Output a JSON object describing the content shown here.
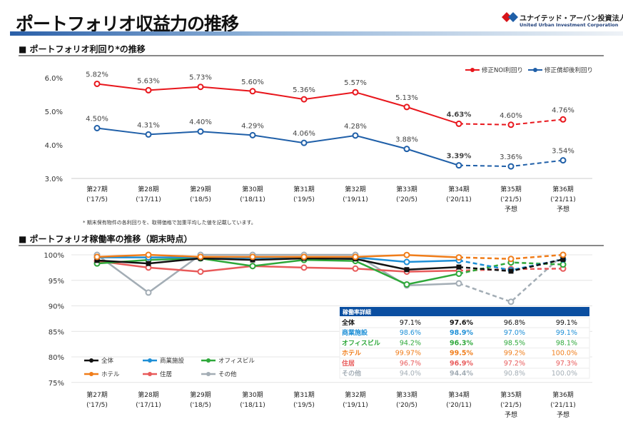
{
  "header": {
    "title": "ポートフォリオ収益力の推移",
    "logo_jp": "ユナイテッド・アーバン投資法人",
    "logo_en": "United Urban Investment Corporation"
  },
  "section1": {
    "title": "■ ポートフォリオ利回り*の推移",
    "note": "* 期末保有物件の各利回りを、取得価格で加重平均した値を記載しています。"
  },
  "section2": {
    "title": "■ ポートフォリオ稼働率の推移（期末時点）"
  },
  "colors": {
    "noi": "#e8161c",
    "after_dep": "#1f5fa8",
    "all": "#111111",
    "commercial": "#1e8fd6",
    "office": "#2ea83a",
    "hotel": "#f07d1a",
    "residential": "#e85a5a",
    "other": "#a3adb5",
    "table_header": "#0a4ea0"
  },
  "chart_data": [
    {
      "type": "line",
      "title": "",
      "categories": [
        [
          "第27期",
          "('17/5)",
          ""
        ],
        [
          "第28期",
          "('17/11)",
          ""
        ],
        [
          "第29期",
          "('18/5)",
          ""
        ],
        [
          "第30期",
          "('18/11)",
          ""
        ],
        [
          "第31期",
          "('19/5)",
          ""
        ],
        [
          "第32期",
          "('19/11)",
          ""
        ],
        [
          "第33期",
          "('20/5)",
          ""
        ],
        [
          "第34期",
          "('20/11)",
          ""
        ],
        [
          "第35期",
          "('21/5)",
          "予想"
        ],
        [
          "第36期",
          "('21/11)",
          "予想"
        ]
      ],
      "ylim": [
        3.0,
        6.0
      ],
      "yticks": [
        "3.0%",
        "4.0%",
        "5.0%",
        "6.0%"
      ],
      "grid": false,
      "legend": "top-right",
      "forecast_from_index": 7,
      "series": [
        {
          "name": "修正NOI利回り",
          "values": [
            5.82,
            5.63,
            5.73,
            5.6,
            5.36,
            5.57,
            5.13,
            4.63,
            4.6,
            4.76
          ],
          "labels": [
            "5.82%",
            "5.63%",
            "5.73%",
            "5.60%",
            "5.36%",
            "5.57%",
            "5.13%",
            "4.63%",
            "4.60%",
            "4.76%"
          ]
        },
        {
          "name": "修正償却後利回り",
          "values": [
            4.5,
            4.31,
            4.4,
            4.29,
            4.06,
            4.28,
            3.88,
            3.39,
            3.36,
            3.54
          ],
          "labels": [
            "4.50%",
            "4.31%",
            "4.40%",
            "4.29%",
            "4.06%",
            "4.28%",
            "3.88%",
            "3.39%",
            "3.36%",
            "3.54%"
          ]
        }
      ]
    },
    {
      "type": "line",
      "title": "",
      "categories": [
        [
          "第27期",
          "('17/5)",
          ""
        ],
        [
          "第28期",
          "('17/11)",
          ""
        ],
        [
          "第29期",
          "('18/5)",
          ""
        ],
        [
          "第30期",
          "('18/11)",
          ""
        ],
        [
          "第31期",
          "('19/5)",
          ""
        ],
        [
          "第32期",
          "('19/11)",
          ""
        ],
        [
          "第33期",
          "('20/5)",
          ""
        ],
        [
          "第34期",
          "('20/11)",
          ""
        ],
        [
          "第35期",
          "('21/5)",
          "予想"
        ],
        [
          "第36期",
          "('21/11)",
          "予想"
        ]
      ],
      "ylim": [
        75,
        100
      ],
      "yticks": [
        "75%",
        "80%",
        "85%",
        "90%",
        "95%",
        "100%"
      ],
      "grid": true,
      "legend": "bottom-left",
      "forecast_from_index": 7,
      "series": [
        {
          "name": "全体",
          "values": [
            98.9,
            98.3,
            99.3,
            99.0,
            99.3,
            99.2,
            97.1,
            97.6,
            96.8,
            99.1
          ]
        },
        {
          "name": "商業施設",
          "values": [
            99.5,
            99.5,
            99.5,
            99.4,
            99.5,
            99.5,
            98.6,
            98.9,
            97.0,
            99.1
          ]
        },
        {
          "name": "オフィスビル",
          "values": [
            98.3,
            99.0,
            99.3,
            97.8,
            99.0,
            98.8,
            94.2,
            96.3,
            98.5,
            98.1
          ]
        },
        {
          "name": "ホテル",
          "values": [
            99.6,
            100,
            99.6,
            99.6,
            99.6,
            99.6,
            99.97,
            99.5,
            99.2,
            100.0
          ]
        },
        {
          "name": "住居",
          "values": [
            98.8,
            97.5,
            96.7,
            97.8,
            97.5,
            97.3,
            96.7,
            96.9,
            97.2,
            97.3
          ]
        },
        {
          "name": "その他",
          "values": [
            100,
            92.6,
            100,
            100,
            100,
            100,
            94.0,
            94.4,
            90.8,
            100.0
          ]
        }
      ],
      "table": {
        "title": "稼働率詳細",
        "rows": [
          {
            "label": "全体",
            "cells": [
              "97.1%",
              "97.6%",
              "96.8%",
              "99.1%"
            ]
          },
          {
            "label": "商業施設",
            "cells": [
              "98.6%",
              "98.9%",
              "97.0%",
              "99.1%"
            ]
          },
          {
            "label": "オフィスビル",
            "cells": [
              "94.2%",
              "96.3%",
              "98.5%",
              "98.1%"
            ]
          },
          {
            "label": "ホテル",
            "cells": [
              "99.97%",
              "99.5%",
              "99.2%",
              "100.0%"
            ]
          },
          {
            "label": "住居",
            "cells": [
              "96.7%",
              "96.9%",
              "97.2%",
              "97.3%"
            ]
          },
          {
            "label": "その他",
            "cells": [
              "94.0%",
              "94.4%",
              "90.8%",
              "100.0%"
            ]
          }
        ]
      }
    }
  ]
}
